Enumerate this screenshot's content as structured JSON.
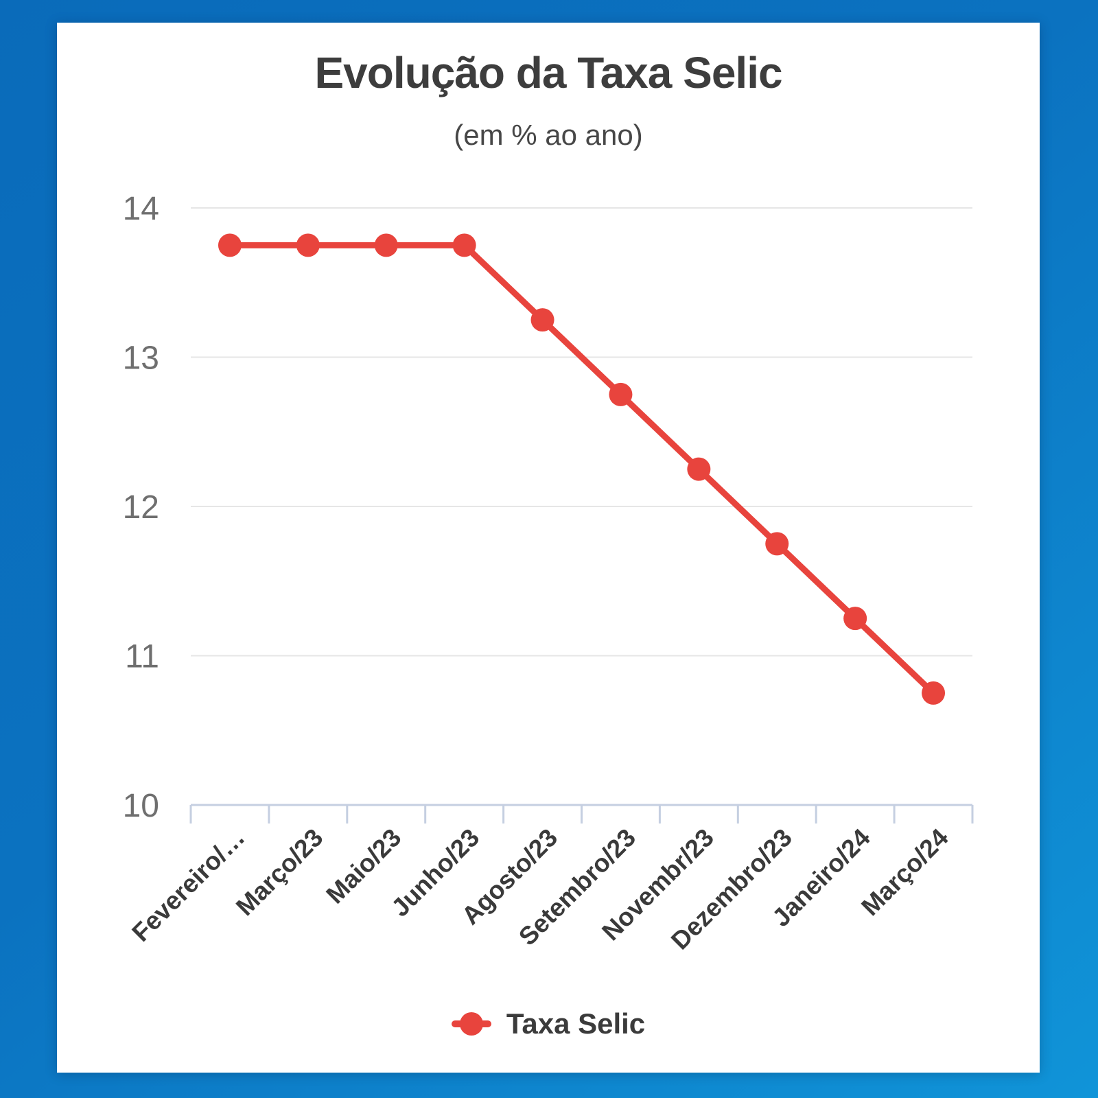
{
  "window": {
    "background_color_top": "#0a6bba",
    "background_color_bottom": "#1094d8",
    "card_color": "#ffffff"
  },
  "chart": {
    "title": "Evolução da Taxa Selic",
    "subtitle": "(em % ao ano)",
    "legend": {
      "label": "Taxa Selic"
    }
  },
  "chart_data": {
    "type": "line",
    "title": "Evolução da Taxa Selic",
    "subtitle": "(em % ao ano)",
    "categories": [
      "Fevereiro/…",
      "Março/23",
      "Maio/23",
      "Junho/23",
      "Agosto/23",
      "Setembro/23",
      "Novembr/23",
      "Dezembro/23",
      "Janeiro/24",
      "Março/24"
    ],
    "series": [
      {
        "name": "Taxa Selic",
        "color": "#e8443d",
        "values": [
          13.75,
          13.75,
          13.75,
          13.75,
          13.25,
          12.75,
          12.25,
          11.75,
          11.25,
          10.75
        ]
      }
    ],
    "xlabel": "",
    "ylabel": "",
    "ylim": [
      10,
      14
    ],
    "yticks": [
      14,
      13,
      12,
      11,
      10
    ],
    "grid": true,
    "legend_position": "bottom",
    "colors": {
      "grid": "#e6e6e6",
      "axis": "#c5cfe1",
      "ytick_label": "#6f6f6f",
      "xtick_label": "#3a3a3a",
      "title": "#3d3d3d",
      "subtitle": "#474747",
      "legend_label": "#3b3b3b"
    }
  }
}
